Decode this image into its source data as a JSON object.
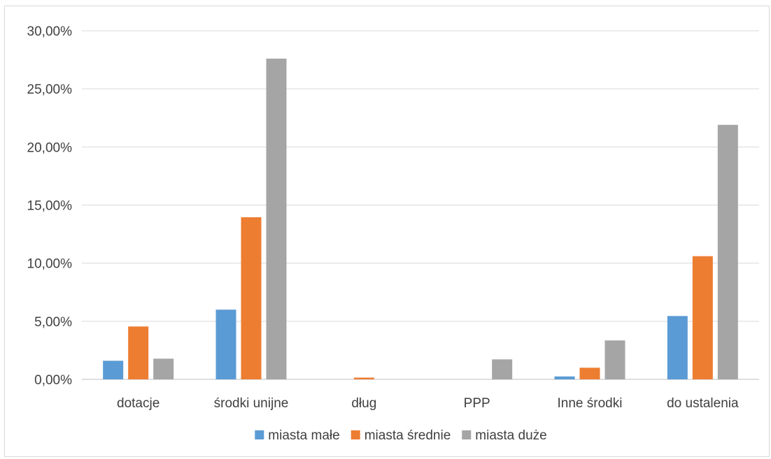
{
  "chart_data": {
    "type": "bar",
    "categories": [
      "dotacje",
      "środki unijne",
      "dług",
      "PPP",
      "Inne środki",
      "do ustalenia"
    ],
    "series": [
      {
        "name": "miasta małe",
        "color": "#5b9bd5",
        "values": [
          0.016,
          0.06,
          0.0,
          0.0,
          0.0025,
          0.0545
        ]
      },
      {
        "name": "miasta średnie",
        "color": "#ed7d31",
        "values": [
          0.0455,
          0.1395,
          0.0015,
          0.0,
          0.01,
          0.106
        ]
      },
      {
        "name": "miasta duże",
        "color": "#a5a5a5",
        "values": [
          0.0178,
          0.276,
          0.0,
          0.0172,
          0.0335,
          0.219
        ]
      }
    ],
    "y_ticks": [
      0,
      0.05,
      0.1,
      0.15,
      0.2,
      0.25,
      0.3
    ],
    "y_tick_labels": [
      "0,00%",
      "5,00%",
      "10,00%",
      "15,00%",
      "20,00%",
      "25,00%",
      "30,00%"
    ],
    "ylim": [
      0,
      0.3
    ],
    "title": "",
    "xlabel": "",
    "ylabel": "",
    "grid": true,
    "legend_position": "bottom",
    "gridline_color": "#d9d9d9",
    "axis_color": "#bfbfbf"
  }
}
